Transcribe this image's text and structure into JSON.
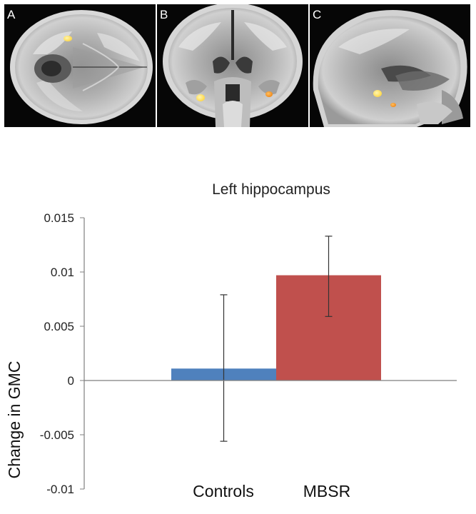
{
  "panels": [
    {
      "letter": "A",
      "view": "axial"
    },
    {
      "letter": "B",
      "view": "coronal"
    },
    {
      "letter": "C",
      "view": "sagittal"
    }
  ],
  "colors": {
    "controls": "#4f81bd",
    "mbsr": "#c0504d",
    "activation_yellow": "#ffd84a",
    "activation_orange": "#f08a1c"
  },
  "chart_data": {
    "type": "bar",
    "title": "Left hippocampus",
    "ylabel": "Change in GMC",
    "xlabel": "",
    "categories": [
      "Controls",
      "MBSR"
    ],
    "values": [
      0.0011,
      0.0097
    ],
    "error": [
      {
        "low": -0.0056,
        "high": 0.0079
      },
      {
        "low": 0.0059,
        "high": 0.0133
      }
    ],
    "ylim": [
      -0.01,
      0.015
    ],
    "yticks": [
      0.015,
      0.01,
      0.005,
      0,
      -0.005,
      -0.01
    ],
    "ytick_labels": [
      "0.015",
      "0.01",
      "0.005",
      "0",
      "-0.005",
      "-0.01"
    ],
    "grid": false,
    "legend": "none"
  }
}
